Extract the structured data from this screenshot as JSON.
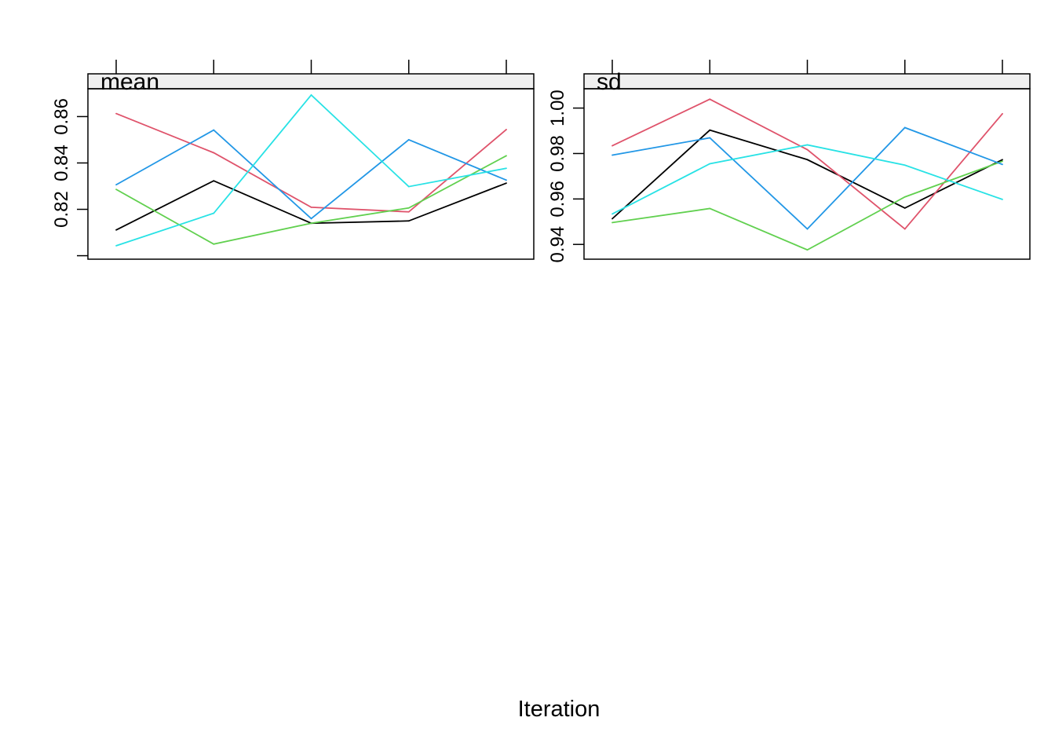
{
  "chart_data": [
    {
      "type": "line",
      "title": "mean",
      "x": [
        1,
        2,
        3,
        4,
        5
      ],
      "ylim": [
        0.7985,
        0.872
      ],
      "yticks": [
        0.8,
        0.82,
        0.84,
        0.86
      ],
      "ytick_labels": [
        "",
        "0.82",
        "0.84",
        "0.86"
      ],
      "grid": false,
      "series": [
        {
          "color": "#000000",
          "values": [
            0.8111,
            0.8323,
            0.814,
            0.815,
            0.8313
          ]
        },
        {
          "color": "#DF536B",
          "values": [
            0.8613,
            0.8444,
            0.8209,
            0.8189,
            0.8544
          ]
        },
        {
          "color": "#61D04F",
          "values": [
            0.8286,
            0.805,
            0.814,
            0.8206,
            0.8431
          ]
        },
        {
          "color": "#2297E6",
          "values": [
            0.8306,
            0.8542,
            0.816,
            0.85,
            0.8326
          ]
        },
        {
          "color": "#28E2E5",
          "values": [
            0.8043,
            0.8183,
            0.8693,
            0.8298,
            0.8377
          ]
        }
      ]
    },
    {
      "type": "line",
      "title": "sd",
      "x": [
        1,
        2,
        3,
        4,
        5
      ],
      "ylim": [
        0.9335,
        1.0085
      ],
      "yticks": [
        0.94,
        0.96,
        0.98,
        1.0
      ],
      "ytick_labels": [
        "0.94",
        "0.96",
        "0.98",
        "1.00"
      ],
      "grid": false,
      "series": [
        {
          "color": "#000000",
          "values": [
            0.9513,
            0.9903,
            0.9773,
            0.956,
            0.9773
          ]
        },
        {
          "color": "#DF536B",
          "values": [
            0.9834,
            1.0039,
            0.9817,
            0.9468,
            0.9975
          ]
        },
        {
          "color": "#61D04F",
          "values": [
            0.9496,
            0.9558,
            0.9376,
            0.9609,
            0.9766
          ]
        },
        {
          "color": "#2297E6",
          "values": [
            0.9793,
            0.9869,
            0.9468,
            0.9914,
            0.9752
          ]
        },
        {
          "color": "#28E2E5",
          "values": [
            0.9534,
            0.9755,
            0.9838,
            0.9749,
            0.9598
          ]
        }
      ]
    }
  ],
  "xlabel": "Iteration"
}
